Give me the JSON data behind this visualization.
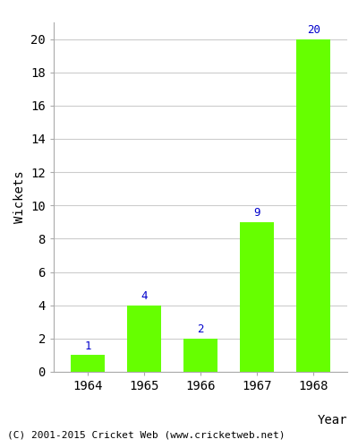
{
  "years": [
    "1964",
    "1965",
    "1966",
    "1967",
    "1968"
  ],
  "values": [
    1,
    4,
    2,
    9,
    20
  ],
  "bar_color": "#66ff00",
  "bar_edgecolor": "#66ff00",
  "label_color": "#0000cc",
  "xlabel": "Year",
  "ylabel": "Wickets",
  "ylim": [
    0,
    21
  ],
  "yticks": [
    0,
    2,
    4,
    6,
    8,
    10,
    12,
    14,
    16,
    18,
    20
  ],
  "grid_color": "#cccccc",
  "background_color": "#ffffff",
  "footer_text": "(C) 2001-2015 Cricket Web (www.cricketweb.net)",
  "footer_color": "#000000",
  "label_fontsize": 9,
  "axis_label_fontsize": 10,
  "tick_fontsize": 10,
  "bar_width": 0.6
}
